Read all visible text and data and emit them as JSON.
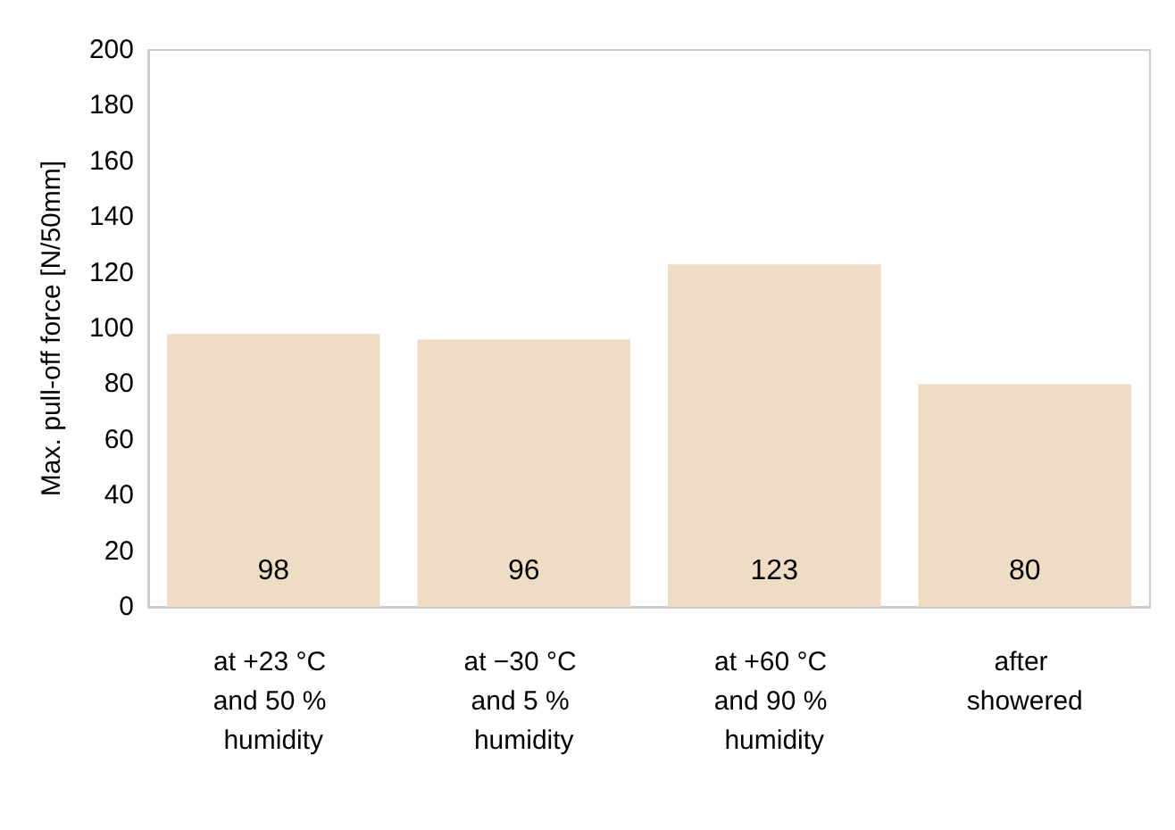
{
  "chart_data": {
    "type": "bar",
    "ylabel": "Max. pull-off force [N/50mm]",
    "categories": [
      "at +23 °C and 50 % humidity",
      "at −30 °C and 5 % humidity",
      "at +60 °C and 90 % humidity",
      "after showered"
    ],
    "values": [
      98,
      96,
      123,
      80
    ],
    "color": "#eedcc4",
    "data_labels": true,
    "ylim": [
      0,
      200
    ],
    "yticks": [
      0,
      20,
      40,
      60,
      80,
      100,
      120,
      140,
      160,
      180,
      200
    ],
    "grid": false
  }
}
